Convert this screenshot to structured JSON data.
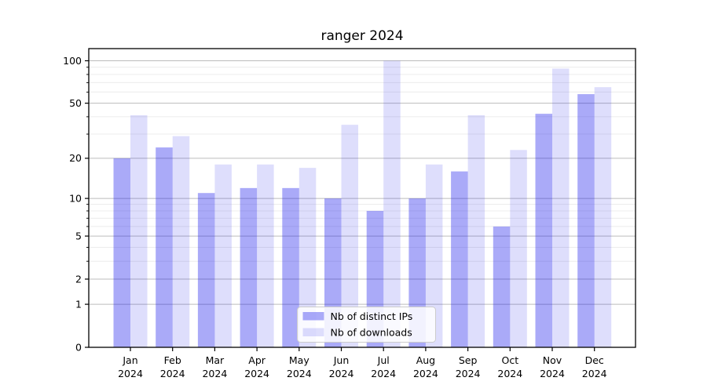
{
  "chart_data": {
    "type": "bar",
    "title": "ranger 2024",
    "categories": [
      "Jan\n2024",
      "Feb\n2024",
      "Mar\n2024",
      "Apr\n2024",
      "May\n2024",
      "Jun\n2024",
      "Jul\n2024",
      "Aug\n2024",
      "Sep\n2024",
      "Oct\n2024",
      "Nov\n2024",
      "Dec\n2024"
    ],
    "series": [
      {
        "name": "Nb of distinct IPs",
        "color": "rgba(20,20,235,0.36)",
        "values": [
          20,
          24,
          11,
          12,
          12,
          10,
          8,
          10,
          16,
          6,
          42,
          58
        ]
      },
      {
        "name": "Nb of downloads",
        "color": "rgba(20,20,235,0.14)",
        "values": [
          41,
          29,
          18,
          18,
          17,
          35,
          100,
          18,
          41,
          23,
          88,
          65
        ]
      }
    ],
    "yscale": "log1p",
    "ylim": [
      0,
      122
    ],
    "yticks_major": [
      0,
      1,
      2,
      5,
      10,
      20,
      50,
      100
    ],
    "yticks_minor": [
      3,
      4,
      6,
      7,
      8,
      9,
      30,
      40,
      60,
      70,
      80,
      90
    ],
    "xlabel": "",
    "ylabel": "",
    "grid": true,
    "legend_position": "lower center"
  },
  "colors": {
    "bar_distinct_ips": "rgba(20,20,235,0.36)",
    "bar_downloads": "rgba(20,20,235,0.14)",
    "grid_major": "#bcbcbc",
    "grid_minor": "#ececec",
    "axis": "#000000",
    "legend_border": "#cccccc",
    "legend_bg": "rgba(255,255,255,0.85)",
    "background": "#ffffff"
  }
}
